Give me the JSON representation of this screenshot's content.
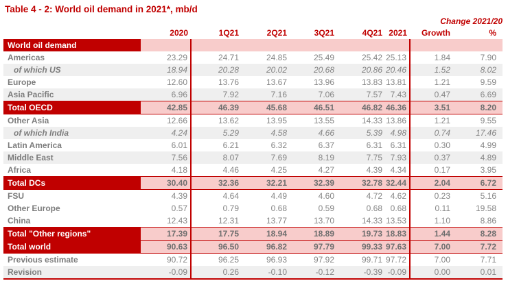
{
  "title": "Table 4 - 2: World oil demand in 2021*, mb/d",
  "change_header": "Change 2021/20",
  "colors": {
    "accent_red": "#c00000",
    "total_row_pink": "#f8cccb",
    "stripe_gray": "#efefef",
    "number_gray": "#848484"
  },
  "table": {
    "columns": [
      "2020",
      "1Q21",
      "2Q21",
      "3Q21",
      "4Q21",
      "2021",
      "Growth",
      "%"
    ],
    "rows": [
      {
        "label": "World oil demand",
        "values": [
          "",
          "",
          "",
          "",
          "",
          "",
          "",
          ""
        ],
        "variant": "section"
      },
      {
        "label": "Americas",
        "values": [
          "23.29",
          "24.71",
          "24.85",
          "25.49",
          "25.42",
          "25.13",
          "1.84",
          "7.90"
        ],
        "variant": "plain"
      },
      {
        "label": "of which US",
        "values": [
          "18.94",
          "20.28",
          "20.02",
          "20.68",
          "20.86",
          "20.46",
          "1.52",
          "8.02"
        ],
        "variant": "italic shaded indent"
      },
      {
        "label": "Europe",
        "values": [
          "12.60",
          "13.76",
          "13.67",
          "13.96",
          "13.83",
          "13.81",
          "1.21",
          "9.59"
        ],
        "variant": "plain"
      },
      {
        "label": "Asia Pacific",
        "values": [
          "6.96",
          "7.92",
          "7.16",
          "7.06",
          "7.57",
          "7.43",
          "0.47",
          "6.69"
        ],
        "variant": "shaded"
      },
      {
        "label": "Total OECD",
        "values": [
          "42.85",
          "46.39",
          "45.68",
          "46.51",
          "46.82",
          "46.36",
          "3.51",
          "8.20"
        ],
        "variant": "total"
      },
      {
        "label": "Other Asia",
        "values": [
          "12.66",
          "13.62",
          "13.95",
          "13.55",
          "14.33",
          "13.86",
          "1.21",
          "9.55"
        ],
        "variant": "plain"
      },
      {
        "label": "of which India",
        "values": [
          "4.24",
          "5.29",
          "4.58",
          "4.66",
          "5.39",
          "4.98",
          "0.74",
          "17.46"
        ],
        "variant": "italic shaded indent"
      },
      {
        "label": "Latin America",
        "values": [
          "6.01",
          "6.21",
          "6.32",
          "6.37",
          "6.31",
          "6.31",
          "0.30",
          "4.99"
        ],
        "variant": "plain"
      },
      {
        "label": "Middle East",
        "values": [
          "7.56",
          "8.07",
          "7.69",
          "8.19",
          "7.75",
          "7.93",
          "0.37",
          "4.89"
        ],
        "variant": "shaded"
      },
      {
        "label": "Africa",
        "values": [
          "4.18",
          "4.46",
          "4.25",
          "4.27",
          "4.39",
          "4.34",
          "0.17",
          "3.95"
        ],
        "variant": "plain"
      },
      {
        "label": "Total DCs",
        "values": [
          "30.40",
          "32.36",
          "32.21",
          "32.39",
          "32.78",
          "32.44",
          "2.04",
          "6.72"
        ],
        "variant": "total"
      },
      {
        "label": "FSU",
        "values": [
          "4.39",
          "4.64",
          "4.49",
          "4.60",
          "4.72",
          "4.62",
          "0.23",
          "5.16"
        ],
        "variant": "plain"
      },
      {
        "label": "Other Europe",
        "values": [
          "0.57",
          "0.79",
          "0.68",
          "0.59",
          "0.68",
          "0.68",
          "0.11",
          "19.58"
        ],
        "variant": "plain"
      },
      {
        "label": "China",
        "values": [
          "12.43",
          "12.31",
          "13.77",
          "13.70",
          "14.33",
          "13.53",
          "1.10",
          "8.86"
        ],
        "variant": "plain"
      },
      {
        "label": "Total \"Other regions\"",
        "values": [
          "17.39",
          "17.75",
          "18.94",
          "18.89",
          "19.73",
          "18.83",
          "1.44",
          "8.28"
        ],
        "variant": "total"
      },
      {
        "label": "Total world",
        "values": [
          "90.63",
          "96.50",
          "96.82",
          "97.79",
          "99.33",
          "97.63",
          "7.00",
          "7.72"
        ],
        "variant": "total"
      },
      {
        "label": "Previous estimate",
        "values": [
          "90.72",
          "96.25",
          "96.93",
          "97.92",
          "99.71",
          "97.72",
          "7.00",
          "7.71"
        ],
        "variant": "plain"
      },
      {
        "label": "Revision",
        "values": [
          "-0.09",
          "0.26",
          "-0.10",
          "-0.12",
          "-0.39",
          "-0.09",
          "0.00",
          "0.01"
        ],
        "variant": "shaded last"
      }
    ]
  }
}
